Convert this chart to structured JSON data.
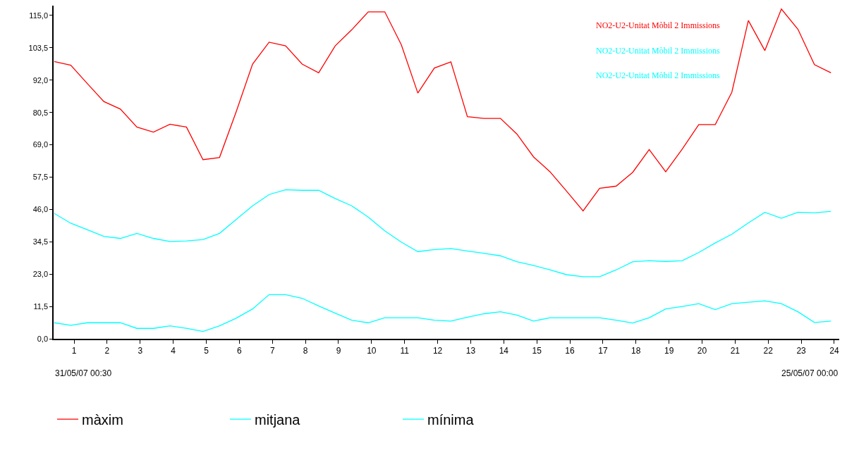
{
  "chart_data": {
    "type": "line",
    "x": [
      0.4,
      0.9,
      1.4,
      1.9,
      2.4,
      2.9,
      3.4,
      3.9,
      4.4,
      4.9,
      5.4,
      5.9,
      6.4,
      6.9,
      7.4,
      7.9,
      8.4,
      8.9,
      9.4,
      9.9,
      10.4,
      10.9,
      11.4,
      11.9,
      12.4,
      12.9,
      13.4,
      13.9,
      14.4,
      14.9,
      15.4,
      15.9,
      16.4,
      16.9,
      17.4,
      17.9,
      18.4,
      18.9,
      19.4,
      19.9,
      20.4,
      20.9,
      21.4,
      21.9,
      22.4,
      22.9,
      23.4,
      23.9
    ],
    "series": [
      {
        "name": "màxim",
        "color": "#ff0000",
        "values": [
          98.6,
          97.3,
          90.8,
          84.4,
          81.7,
          75.3,
          73.5,
          76.3,
          75.3,
          63.7,
          64.5,
          80.6,
          97.7,
          105.5,
          104.2,
          97.7,
          94.6,
          104.2,
          109.9,
          116.3,
          116.3,
          104.6,
          87.4,
          96.3,
          98.5,
          79.0,
          78.4,
          78.4,
          72.8,
          64.7,
          59.4,
          52.5,
          45.5,
          53.5,
          54.3,
          59.2,
          67.3,
          59.4,
          67.5,
          76.2,
          76.2,
          87.7,
          113.2,
          102.5,
          117.3,
          110.1,
          97.5,
          94.6
        ]
      },
      {
        "name": "mitjana",
        "color": "#00ffff",
        "values": [
          44.6,
          41.1,
          38.8,
          36.4,
          35.7,
          37.5,
          35.7,
          34.6,
          34.8,
          35.3,
          37.5,
          42.4,
          47.3,
          51.3,
          53.0,
          52.8,
          52.8,
          49.9,
          47.3,
          43.3,
          38.4,
          34.4,
          31.0,
          31.7,
          32.1,
          31.2,
          30.4,
          29.5,
          27.4,
          26.1,
          24.5,
          22.8,
          22.1,
          22.1,
          24.5,
          27.4,
          27.8,
          27.5,
          27.8,
          30.7,
          34.1,
          37.2,
          41.2,
          45.0,
          42.9,
          45.0,
          44.8,
          45.3
        ]
      },
      {
        "name": "mínima",
        "color": "#00ffff",
        "values": [
          5.7,
          4.8,
          5.7,
          5.7,
          5.7,
          3.7,
          3.7,
          4.6,
          3.7,
          2.6,
          4.6,
          7.3,
          10.6,
          15.7,
          15.7,
          14.4,
          11.7,
          9.1,
          6.6,
          5.7,
          7.5,
          7.5,
          7.5,
          6.6,
          6.3,
          7.7,
          8.9,
          9.6,
          8.4,
          6.3,
          7.5,
          7.5,
          7.5,
          7.5,
          6.6,
          5.6,
          7.5,
          10.6,
          11.5,
          12.5,
          10.4,
          12.5,
          13.0,
          13.5,
          12.5,
          9.6,
          5.8,
          6.3
        ]
      }
    ],
    "xlim": [
      0.38,
      24.15
    ],
    "xticks": [
      1,
      2,
      3,
      4,
      5,
      6,
      7,
      8,
      9,
      10,
      11,
      12,
      13,
      14,
      15,
      16,
      17,
      18,
      19,
      20,
      21,
      22,
      23,
      24
    ],
    "ylim": [
      0,
      118.5
    ],
    "yticks": [
      {
        "value": 0,
        "label": "0,0"
      },
      {
        "value": 11.5,
        "label": "11,5"
      },
      {
        "value": 23,
        "label": "23,0"
      },
      {
        "value": 34.5,
        "label": "34,5"
      },
      {
        "value": 46,
        "label": "46,0"
      },
      {
        "value": 57.5,
        "label": "57,5"
      },
      {
        "value": 69,
        "label": "69,0"
      },
      {
        "value": 80.5,
        "label": "80,5"
      },
      {
        "value": 92,
        "label": "92,0"
      },
      {
        "value": 103.5,
        "label": "103,5"
      },
      {
        "value": 115,
        "label": "115,0"
      }
    ],
    "annotations": [
      "NO2-U2-Unitat Mòbil 2 Immissions",
      "NO2-U2-Unitat Mòbil 2 Immissions",
      "NO2-U2-Unitat Mòbil 2 Immissions",
      "31/05/07 00:30",
      "25/05/07 00:00"
    ],
    "legend": "bottom left",
    "marker": "none",
    "line_style": "solid"
  }
}
